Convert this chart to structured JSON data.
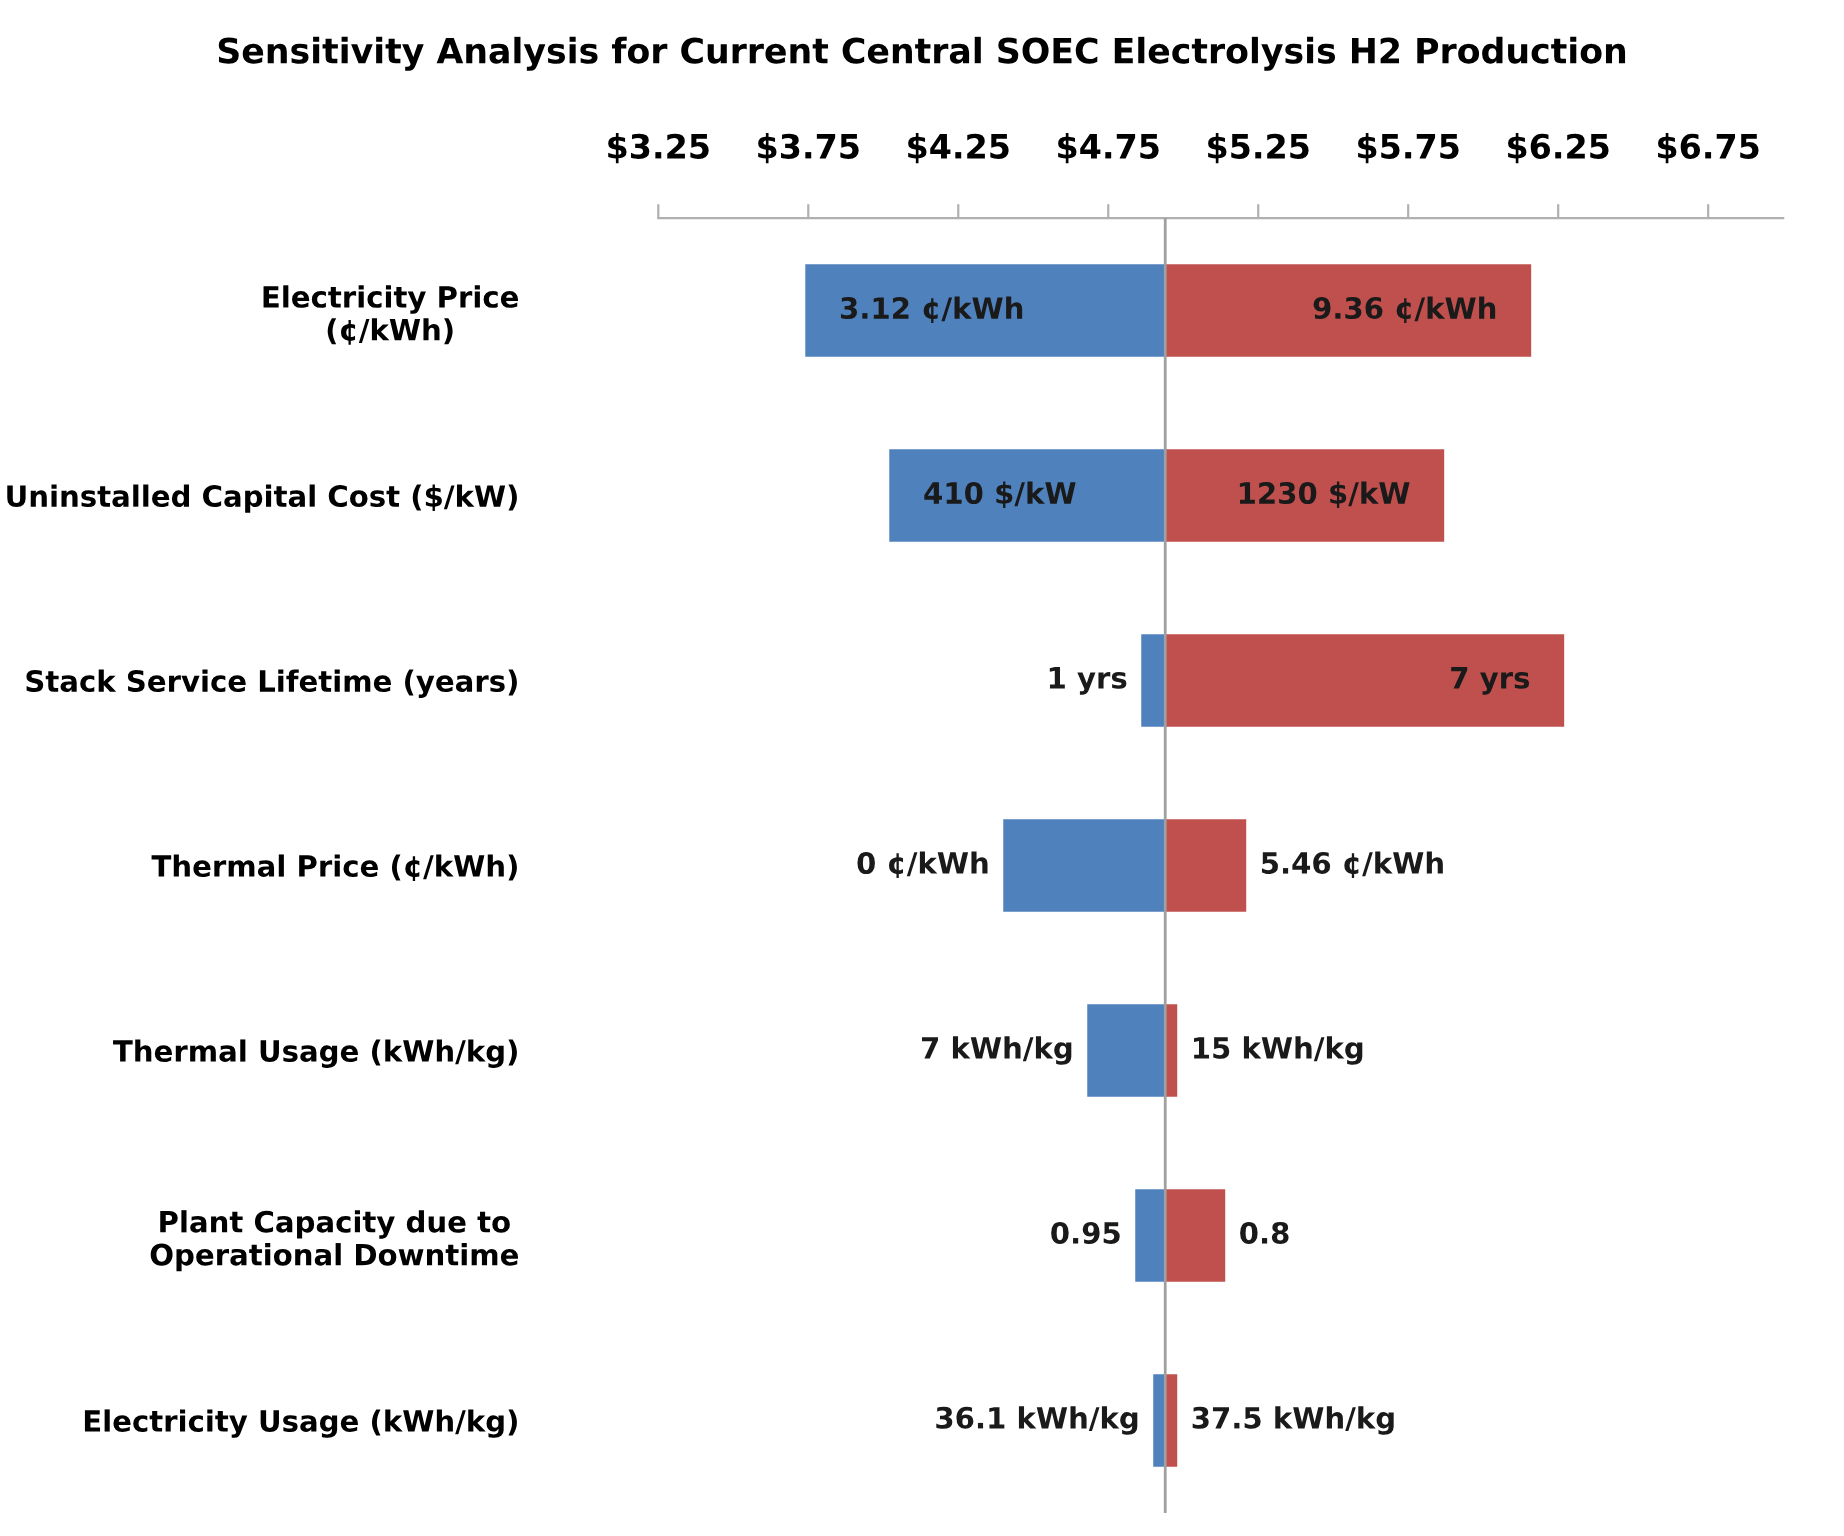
{
  "chart_data": {
    "type": "bar",
    "orientation": "horizontal",
    "title": "Sensitivity Analysis for Current Central SOEC Electrolysis H2 Production",
    "categories": [
      "Electricity Price\n(¢/kWh)",
      "Uninstalled Capital Cost ($/kW)",
      "Stack Service Lifetime (years)",
      "Thermal Price (¢/kWh)",
      "Thermal Usage (kWh/kg)",
      "Plant Capacity due to\nOperational Downtime",
      "Electricity Usage (kWh/kg)"
    ],
    "series": [
      {
        "color": "#4f81bd",
        "base": [
          3.74,
          4.02,
          4.86,
          4.4,
          4.68,
          4.84,
          4.9
        ],
        "values": [
          1.2,
          0.92,
          0.08,
          0.54,
          0.26,
          0.1,
          0.04
        ]
      },
      {
        "color": "#c0504d",
        "base": [
          4.94,
          4.94,
          4.94,
          4.94,
          4.94,
          4.94,
          4.94
        ],
        "values": [
          1.22,
          0.93,
          1.33,
          0.27,
          0.04,
          0.2,
          0.04
        ]
      }
    ],
    "annotations": [
      {
        "text": "3.12 ¢/kWh",
        "x": 3.74,
        "y": "Electricity Price\n(¢/kWh)"
      },
      {
        "text": "9.36 ¢/kWh",
        "x": 6.16,
        "y": "Electricity Price\n(¢/kWh)"
      },
      {
        "text": "410 $/kW",
        "x": 4.02,
        "y": "Uninstalled Capital Cost ($/kW)"
      },
      {
        "text": "1230 $/kW",
        "x": 5.87,
        "y": "Uninstalled Capital Cost ($/kW)"
      },
      {
        "text": "1 yrs",
        "x": 4.86,
        "y": "Stack Service Lifetime (years)"
      },
      {
        "text": "7 yrs",
        "x": 6.27,
        "y": "Stack Service Lifetime (years)"
      },
      {
        "text": "0 ¢/kWh",
        "x": 4.4,
        "y": "Thermal Price (¢/kWh)"
      },
      {
        "text": "5.46 ¢/kWh",
        "x": 5.21,
        "y": "Thermal Price (¢/kWh)"
      },
      {
        "text": "7 kWh/kg",
        "x": 4.68,
        "y": "Thermal Usage (kWh/kg)"
      },
      {
        "text": "15 kWh/kg",
        "x": 4.98,
        "y": "Thermal Usage (kWh/kg)"
      },
      {
        "text": "0.95",
        "x": 4.84,
        "y": "Plant Capacity due to\nOperational Downtime"
      },
      {
        "text": "0.8",
        "x": 5.14,
        "y": "Plant Capacity due to\nOperational Downtime"
      },
      {
        "text": "36.1 kWh/kg",
        "x": 4.9,
        "y": "Electricity Usage (kWh/kg)"
      },
      {
        "text": "37.5 kWh/kg",
        "x": 4.98,
        "y": "Electricity Usage (kWh/kg)"
      }
    ],
    "xlim": [
      3.25,
      7.0
    ],
    "xticks": [
      {
        "value": 3.25,
        "label": "$3.25"
      },
      {
        "value": 3.75,
        "label": "$3.75"
      },
      {
        "value": 4.25,
        "label": "$4.25"
      },
      {
        "value": 4.75,
        "label": "$4.75"
      },
      {
        "value": 5.25,
        "label": "$5.25"
      },
      {
        "value": 5.75,
        "label": "$5.75"
      },
      {
        "value": 6.25,
        "label": "$6.25"
      },
      {
        "value": 6.75,
        "label": "$6.75"
      }
    ],
    "ref_lines": [
      {
        "axis": "x",
        "value": 4.94,
        "color": "#a0a0a0"
      }
    ],
    "grid": false,
    "legend": false
  }
}
